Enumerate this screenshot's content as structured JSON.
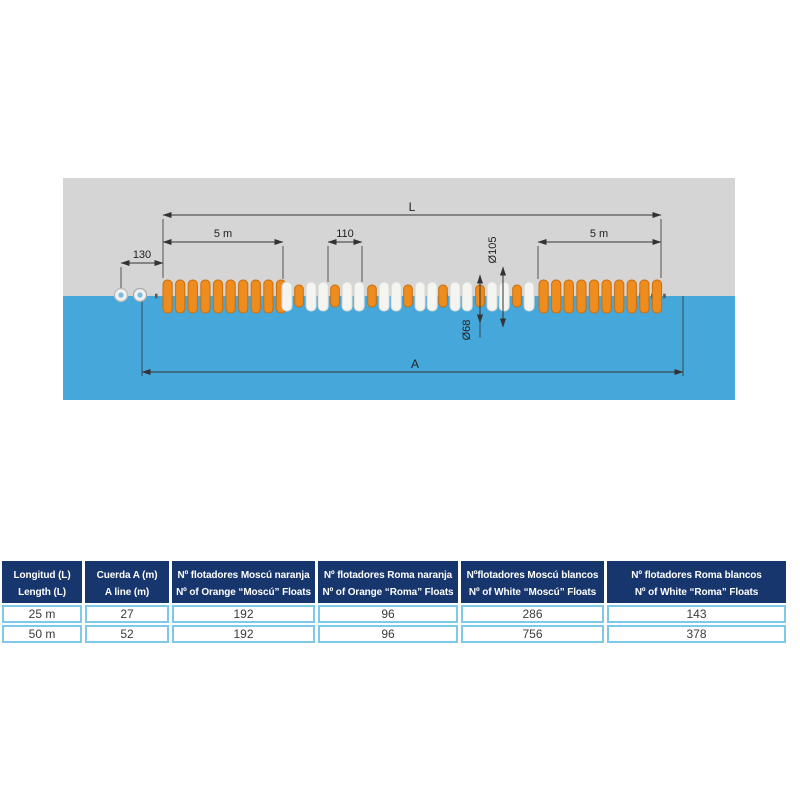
{
  "diagram": {
    "labels": {
      "total_length": "L",
      "left_section_length": "5 m",
      "float_spacing": "110",
      "end_offset": "130",
      "right_section_length": "5 m",
      "large_float_diameter": "Ø105",
      "small_float_diameter": "Ø68",
      "rope_length": "A"
    },
    "colors": {
      "sky": "#d5d5d5",
      "water": "#45a7da",
      "orange_float": "#ee8c1d",
      "orange_float_dark": "#c96f0e",
      "white_float": "#f4f4f1",
      "white_float_dark": "#d8d8d4",
      "dimension_line": "#333333"
    }
  },
  "table": {
    "colors": {
      "header_bg": "#17366d",
      "header_text": "#ffffff",
      "grid_border": "#7ec9ea",
      "cell_text": "#3a3a3a"
    },
    "columns": [
      {
        "es": "Longitud (L)",
        "en": "Length (L)"
      },
      {
        "es": "Cuerda A (m)",
        "en": "A line (m)"
      },
      {
        "es": "Nº flotadores Moscú naranja",
        "en": "Nº of Orange “Moscú” Floats"
      },
      {
        "es": "Nº flotadores Roma naranja",
        "en": "Nº of Orange “Roma” Floats"
      },
      {
        "es": "Nºflotadores Moscú blancos",
        "en": "Nº of White “Moscú” Floats"
      },
      {
        "es": "Nº flotadores Roma blancos",
        "en": "Nº of White “Roma” Floats"
      }
    ],
    "rows": [
      [
        "25 m",
        "27",
        "192",
        "96",
        "286",
        "143"
      ],
      [
        "50 m",
        "52",
        "192",
        "96",
        "756",
        "378"
      ]
    ]
  }
}
